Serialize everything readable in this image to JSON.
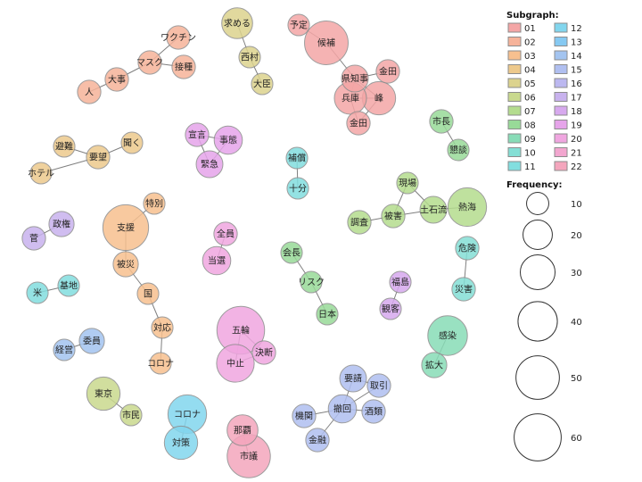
{
  "chart_data": {
    "type": "network",
    "legend": {
      "subgraph_title": "Subgraph:",
      "frequency_title": "Frequency:",
      "subgraphs": [
        {
          "label": "01",
          "color": "#f4a6a6"
        },
        {
          "label": "02",
          "color": "#f6b39a"
        },
        {
          "label": "03",
          "color": "#f7c08f"
        },
        {
          "label": "04",
          "color": "#edc98c"
        },
        {
          "label": "05",
          "color": "#dcd38e"
        },
        {
          "label": "06",
          "color": "#c9d98e"
        },
        {
          "label": "07",
          "color": "#b4dc8e"
        },
        {
          "label": "08",
          "color": "#98da98"
        },
        {
          "label": "09",
          "color": "#88dcb7"
        },
        {
          "label": "10",
          "color": "#84dfd5"
        },
        {
          "label": "11",
          "color": "#82dedf"
        },
        {
          "label": "12",
          "color": "#82d6ee"
        },
        {
          "label": "13",
          "color": "#86c9f2"
        },
        {
          "label": "14",
          "color": "#a3c4f0"
        },
        {
          "label": "15",
          "color": "#b0bff0"
        },
        {
          "label": "16",
          "color": "#bcb8f0"
        },
        {
          "label": "17",
          "color": "#c8b2ee"
        },
        {
          "label": "18",
          "color": "#d7a9ee"
        },
        {
          "label": "19",
          "color": "#e6a4ea"
        },
        {
          "label": "20",
          "color": "#f0a6e0"
        },
        {
          "label": "21",
          "color": "#f2a6cf"
        },
        {
          "label": "22",
          "color": "#f4a6bd"
        }
      ],
      "frequencies": [
        10,
        20,
        30,
        40,
        50,
        60
      ]
    },
    "nodes": [
      {
        "id": "予定",
        "group": "01",
        "freq": 8
      },
      {
        "id": "候補",
        "group": "01",
        "freq": 45
      },
      {
        "id": "県知事",
        "group": "01",
        "freq": 14
      },
      {
        "id": "兵庫",
        "group": "01",
        "freq": 22
      },
      {
        "id": "金田1",
        "label": "金田",
        "group": "01",
        "freq": 10
      },
      {
        "id": "峰",
        "group": "01",
        "freq": 24
      },
      {
        "id": "金田2",
        "label": "金田",
        "group": "01",
        "freq": 10
      },
      {
        "id": "ワクチン",
        "group": "02",
        "freq": 10
      },
      {
        "id": "マスク",
        "group": "02",
        "freq": 10
      },
      {
        "id": "接種",
        "group": "02",
        "freq": 10
      },
      {
        "id": "大事",
        "group": "02",
        "freq": 10
      },
      {
        "id": "人",
        "group": "02",
        "freq": 10
      },
      {
        "id": "支援",
        "group": "03",
        "freq": 50
      },
      {
        "id": "特別",
        "group": "03",
        "freq": 8
      },
      {
        "id": "被災",
        "group": "03",
        "freq": 12
      },
      {
        "id": "国",
        "group": "03",
        "freq": 8
      },
      {
        "id": "対応",
        "group": "03",
        "freq": 8
      },
      {
        "id": "コロナ1",
        "label": "コロナ",
        "group": "03",
        "freq": 8
      },
      {
        "id": "避難",
        "group": "04",
        "freq": 8
      },
      {
        "id": "聞く",
        "group": "04",
        "freq": 8
      },
      {
        "id": "要望",
        "group": "04",
        "freq": 10
      },
      {
        "id": "ホテル",
        "group": "04",
        "freq": 8
      },
      {
        "id": "求める",
        "group": "05",
        "freq": 20
      },
      {
        "id": "西村",
        "group": "05",
        "freq": 8
      },
      {
        "id": "大臣",
        "group": "05",
        "freq": 8
      },
      {
        "id": "東京",
        "group": "06",
        "freq": 24
      },
      {
        "id": "市民",
        "group": "06",
        "freq": 8
      },
      {
        "id": "熱海",
        "group": "07",
        "freq": 34
      },
      {
        "id": "土石流",
        "group": "07",
        "freq": 14
      },
      {
        "id": "現場",
        "group": "07",
        "freq": 8
      },
      {
        "id": "被害",
        "group": "07",
        "freq": 10
      },
      {
        "id": "調査",
        "group": "07",
        "freq": 10
      },
      {
        "id": "会長",
        "group": "08",
        "freq": 8
      },
      {
        "id": "リスク",
        "group": "08",
        "freq": 8
      },
      {
        "id": "日本",
        "group": "08",
        "freq": 8
      },
      {
        "id": "市長",
        "group": "08",
        "freq": 10
      },
      {
        "id": "懇談",
        "group": "08",
        "freq": 8
      },
      {
        "id": "感染",
        "group": "09",
        "freq": 36
      },
      {
        "id": "拡大",
        "group": "09",
        "freq": 12
      },
      {
        "id": "危険",
        "group": "10",
        "freq": 10
      },
      {
        "id": "災害",
        "group": "10",
        "freq": 10
      },
      {
        "id": "米",
        "group": "11",
        "freq": 8
      },
      {
        "id": "基地",
        "group": "11",
        "freq": 8
      },
      {
        "id": "補償",
        "group": "11",
        "freq": 8
      },
      {
        "id": "十分",
        "group": "11",
        "freq": 8
      },
      {
        "id": "コロナ2",
        "label": "コロナ",
        "group": "12",
        "freq": 34
      },
      {
        "id": "対策",
        "group": "12",
        "freq": 24
      },
      {
        "id": "委員",
        "group": "14",
        "freq": 12
      },
      {
        "id": "経営",
        "group": "14",
        "freq": 8
      },
      {
        "id": "要請",
        "group": "15",
        "freq": 14
      },
      {
        "id": "取引",
        "group": "15",
        "freq": 10
      },
      {
        "id": "撤回",
        "group": "15",
        "freq": 16
      },
      {
        "id": "機関",
        "group": "15",
        "freq": 10
      },
      {
        "id": "酒類",
        "group": "15",
        "freq": 10
      },
      {
        "id": "金融",
        "group": "15",
        "freq": 10
      },
      {
        "id": "政権",
        "group": "17",
        "freq": 12
      },
      {
        "id": "菅",
        "group": "17",
        "freq": 10
      },
      {
        "id": "福島",
        "group": "18",
        "freq": 8
      },
      {
        "id": "観客",
        "group": "18",
        "freq": 8
      },
      {
        "id": "宣言",
        "group": "19",
        "freq": 10
      },
      {
        "id": "事態",
        "group": "19",
        "freq": 16
      },
      {
        "id": "緊急",
        "group": "19",
        "freq": 14
      },
      {
        "id": "五輪",
        "group": "20",
        "freq": 55
      },
      {
        "id": "中止",
        "group": "20",
        "freq": 32
      },
      {
        "id": "決断",
        "group": "20",
        "freq": 10
      },
      {
        "id": "全員",
        "group": "20",
        "freq": 10
      },
      {
        "id": "当選",
        "group": "20",
        "freq": 16
      },
      {
        "id": "那覇",
        "group": "22",
        "freq": 20
      },
      {
        "id": "市議",
        "group": "22",
        "freq": 44
      }
    ],
    "edges": [
      [
        "予定",
        "候補"
      ],
      [
        "候補",
        "県知事"
      ],
      [
        "県知事",
        "金田1"
      ],
      [
        "県知事",
        "兵庫"
      ],
      [
        "県知事",
        "峰"
      ],
      [
        "兵庫",
        "峰"
      ],
      [
        "兵庫",
        "金田2"
      ],
      [
        "峰",
        "金田2"
      ],
      [
        "ワクチン",
        "マスク"
      ],
      [
        "マスク",
        "接種"
      ],
      [
        "マスク",
        "大事"
      ],
      [
        "大事",
        "人"
      ],
      [
        "特別",
        "支援"
      ],
      [
        "支援",
        "被災"
      ],
      [
        "被災",
        "国"
      ],
      [
        "国",
        "対応"
      ],
      [
        "対応",
        "コロナ1"
      ],
      [
        "避難",
        "要望"
      ],
      [
        "聞く",
        "要望"
      ],
      [
        "ホテル",
        "要望"
      ],
      [
        "求める",
        "西村"
      ],
      [
        "西村",
        "大臣"
      ],
      [
        "東京",
        "市民"
      ],
      [
        "現場",
        "土石流"
      ],
      [
        "土石流",
        "熱海"
      ],
      [
        "土石流",
        "被害"
      ],
      [
        "被害",
        "調査"
      ],
      [
        "現場",
        "被害"
      ],
      [
        "会長",
        "リスク"
      ],
      [
        "リスク",
        "日本"
      ],
      [
        "市長",
        "懇談"
      ],
      [
        "感染",
        "拡大"
      ],
      [
        "危険",
        "災害"
      ],
      [
        "米",
        "基地"
      ],
      [
        "補償",
        "十分"
      ],
      [
        "コロナ2",
        "対策"
      ],
      [
        "委員",
        "経営"
      ],
      [
        "要請",
        "撤回"
      ],
      [
        "要請",
        "取引"
      ],
      [
        "撤回",
        "取引"
      ],
      [
        "撤回",
        "機関"
      ],
      [
        "撤回",
        "酒類"
      ],
      [
        "撤回",
        "金融"
      ],
      [
        "政権",
        "菅"
      ],
      [
        "福島",
        "観客"
      ],
      [
        "宣言",
        "事態"
      ],
      [
        "事態",
        "緊急"
      ],
      [
        "宣言",
        "緊急"
      ],
      [
        "五輪",
        "中止"
      ],
      [
        "五輪",
        "決断"
      ],
      [
        "中止",
        "決断"
      ],
      [
        "全員",
        "当選"
      ],
      [
        "那覇",
        "市議"
      ]
    ]
  }
}
